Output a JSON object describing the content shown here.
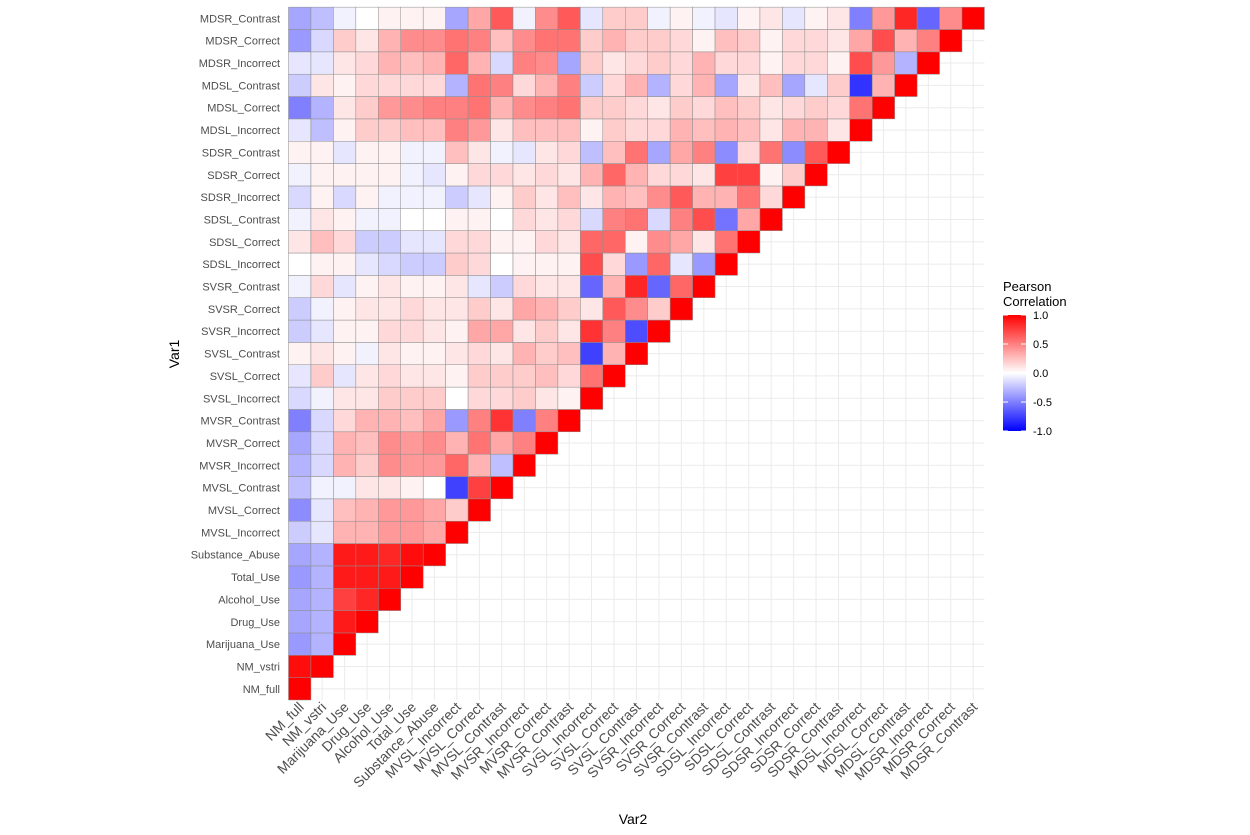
{
  "chart_data": {
    "type": "heatmap",
    "variables": [
      "NM_full",
      "NM_vstri",
      "Marijuana_Use",
      "Drug_Use",
      "Alcohol_Use",
      "Total_Use",
      "Substance_Abuse",
      "MVSL_Incorrect",
      "MVSL_Correct",
      "MVSL_Contrast",
      "MVSR_Incorrect",
      "MVSR_Correct",
      "MVSR_Contrast",
      "SVSL_Incorrect",
      "SVSL_Correct",
      "SVSL_Contrast",
      "SVSR_Incorrect",
      "SVSR_Correct",
      "SVSR_Contrast",
      "SDSL_Incorrect",
      "SDSL_Correct",
      "SDSL_Contrast",
      "SDSR_Incorrect",
      "SDSR_Correct",
      "SDSR_Contrast",
      "MDSL_Incorrect",
      "MDSL_Correct",
      "MDSL_Contrast",
      "MDSR_Incorrect",
      "MDSR_Correct",
      "MDSR_Contrast"
    ],
    "xlabel": "Var2",
    "ylabel": "Var1",
    "legend": {
      "title_line1": "Pearson",
      "title_line2": "Correlation",
      "ticks": [
        "1.0",
        "0.5",
        "0.0",
        "-0.5",
        "-1.0"
      ],
      "range": [
        -1,
        1
      ],
      "placement": "right"
    },
    "colors": {
      "low": "#0000FF",
      "mid": "#FFFFFF",
      "high": "#FF0000"
    },
    "grid": true,
    "correlations": [
      [
        1
      ],
      [
        0.95,
        1
      ],
      [
        -0.4,
        -0.3,
        1
      ],
      [
        -0.35,
        -0.3,
        0.9,
        1
      ],
      [
        -0.35,
        -0.3,
        0.75,
        0.85,
        1
      ],
      [
        -0.4,
        -0.3,
        0.9,
        0.9,
        0.9,
        1
      ],
      [
        -0.35,
        -0.3,
        0.9,
        0.9,
        0.85,
        0.95,
        1
      ],
      [
        -0.2,
        -0.1,
        0.3,
        0.3,
        0.4,
        0.4,
        0.35,
        1
      ],
      [
        -0.45,
        -0.1,
        0.25,
        0.3,
        0.4,
        0.4,
        0.35,
        0.2,
        1
      ],
      [
        -0.25,
        -0.05,
        -0.05,
        0.1,
        0.1,
        0.05,
        0,
        -0.75,
        0.75,
        1
      ],
      [
        -0.3,
        -0.15,
        0.3,
        0.2,
        0.45,
        0.4,
        0.4,
        0.6,
        0.3,
        -0.25,
        1
      ],
      [
        -0.35,
        -0.15,
        0.3,
        0.25,
        0.45,
        0.4,
        0.45,
        0.3,
        0.55,
        0.35,
        0.5,
        1
      ],
      [
        -0.5,
        -0.15,
        0.15,
        0.3,
        0.3,
        0.25,
        0.35,
        -0.4,
        0.5,
        0.8,
        -0.5,
        0.5,
        1
      ],
      [
        -0.15,
        -0.05,
        0.1,
        0.1,
        0.2,
        0.2,
        0.2,
        0,
        0.15,
        0.15,
        0.2,
        0.1,
        0.05,
        1
      ],
      [
        -0.1,
        0.2,
        -0.1,
        0.1,
        0.15,
        0.1,
        0.1,
        0.05,
        0.2,
        0.2,
        0.2,
        0.25,
        0.15,
        0.55,
        1
      ],
      [
        0.05,
        0.1,
        0.05,
        -0.05,
        0.1,
        0.05,
        0.05,
        0.1,
        0.15,
        0.1,
        0.3,
        0.2,
        0.25,
        -0.75,
        0.3,
        1
      ],
      [
        -0.2,
        -0.1,
        0.05,
        0.05,
        0.15,
        0.15,
        0.1,
        0.05,
        0.35,
        0.35,
        0.1,
        0.2,
        0.1,
        0.8,
        0.5,
        -0.7,
        1
      ],
      [
        -0.2,
        -0.05,
        0.05,
        0.1,
        0.1,
        0.15,
        0.1,
        0.1,
        0.2,
        0.1,
        0.35,
        0.3,
        0.2,
        0.1,
        0.65,
        0.45,
        0.2,
        1
      ],
      [
        -0.05,
        0.15,
        -0.1,
        0.05,
        0.1,
        0.05,
        0.05,
        0.1,
        -0.1,
        -0.2,
        0.15,
        0.1,
        0.1,
        -0.6,
        0.3,
        0.85,
        -0.6,
        0.6,
        1
      ],
      [
        0,
        0.05,
        0.05,
        -0.1,
        -0.15,
        -0.2,
        -0.2,
        0.2,
        0.15,
        0,
        0.05,
        0.05,
        0.05,
        0.7,
        0.15,
        -0.4,
        0.6,
        -0.1,
        -0.4,
        1
      ],
      [
        0.1,
        0.25,
        0.15,
        -0.2,
        -0.2,
        -0.1,
        -0.1,
        0.15,
        0.15,
        0.05,
        0.05,
        0.15,
        0.1,
        0.6,
        0.6,
        0.05,
        0.45,
        0.35,
        0.1,
        0.55,
        1
      ],
      [
        -0.05,
        0.1,
        0.05,
        -0.05,
        -0.05,
        0,
        0,
        0.05,
        0.05,
        0,
        0.15,
        0.1,
        0.15,
        -0.15,
        0.5,
        0.55,
        -0.15,
        0.5,
        0.7,
        -0.55,
        0.35,
        1
      ],
      [
        -0.15,
        0.05,
        -0.15,
        0.05,
        -0.05,
        -0.05,
        -0.05,
        -0.2,
        -0.1,
        0.05,
        0.2,
        0.1,
        0.25,
        0.1,
        0.3,
        0.25,
        0.45,
        0.65,
        0.3,
        0.3,
        0.55,
        0.15,
        1
      ],
      [
        -0.05,
        0.05,
        0.05,
        0.05,
        0.05,
        -0.05,
        -0.1,
        0.05,
        0.15,
        0.15,
        0.1,
        0.15,
        0.1,
        0.3,
        0.6,
        0.3,
        0.15,
        0.15,
        0.1,
        0.75,
        0.75,
        0.05,
        0.2,
        1
      ],
      [
        0.05,
        0.05,
        -0.1,
        0.05,
        0.05,
        -0.05,
        -0.05,
        0.25,
        0.1,
        -0.05,
        -0.1,
        0.1,
        0.15,
        -0.25,
        0.25,
        0.55,
        -0.35,
        0.35,
        0.5,
        -0.45,
        0.15,
        0.55,
        -0.45,
        0.65,
        1
      ],
      [
        -0.1,
        -0.25,
        0.05,
        0.2,
        0.2,
        0.25,
        0.25,
        0.5,
        0.4,
        0.1,
        0.25,
        0.25,
        0.25,
        0.05,
        0.2,
        0.15,
        0.15,
        0.3,
        0.25,
        0.3,
        0.25,
        0.1,
        0.3,
        0.3,
        0.1,
        1
      ],
      [
        -0.5,
        -0.3,
        0.1,
        0.2,
        0.4,
        0.45,
        0.5,
        0.5,
        0.55,
        0.3,
        0.45,
        0.5,
        0.55,
        0.2,
        0.2,
        0.15,
        0.1,
        0.2,
        0.15,
        0.25,
        0.2,
        0.1,
        0.15,
        0.2,
        0.15,
        0.55,
        1
      ],
      [
        -0.2,
        0.1,
        0.05,
        0.15,
        0.15,
        0.15,
        0.15,
        -0.3,
        0.55,
        0.5,
        0.15,
        0.3,
        0.5,
        -0.2,
        0.15,
        0.3,
        -0.3,
        0.15,
        0.3,
        -0.35,
        0.1,
        0.25,
        -0.35,
        -0.1,
        0.2,
        -0.8,
        0.3,
        1
      ],
      [
        -0.1,
        -0.1,
        0.1,
        0.15,
        0.3,
        0.25,
        0.3,
        0.6,
        0.3,
        -0.15,
        0.5,
        0.45,
        -0.35,
        0.2,
        0.1,
        0.15,
        0.2,
        0.15,
        0.3,
        0.15,
        0.15,
        0.05,
        0.15,
        0.15,
        0.05,
        0.7,
        0.4,
        -0.3,
        1
      ],
      [
        -0.4,
        -0.15,
        0.2,
        0.1,
        0.3,
        0.45,
        0.45,
        0.55,
        0.5,
        0.25,
        0.45,
        0.55,
        0.55,
        0.2,
        0.3,
        0.2,
        0.2,
        0.15,
        0.05,
        0.25,
        0.2,
        0.05,
        0.15,
        0.15,
        0.1,
        0.35,
        0.7,
        0.3,
        0.5,
        1
      ],
      [
        -0.35,
        -0.25,
        -0.05,
        0,
        0.05,
        0.05,
        0.05,
        -0.35,
        0.35,
        0.65,
        -0.05,
        0.45,
        0.65,
        -0.1,
        0.2,
        0.2,
        -0.05,
        0.05,
        -0.05,
        -0.1,
        0.05,
        0.1,
        -0.1,
        0.05,
        0.1,
        -0.5,
        0.4,
        0.85,
        -0.6,
        0.45,
        1
      ]
    ]
  }
}
